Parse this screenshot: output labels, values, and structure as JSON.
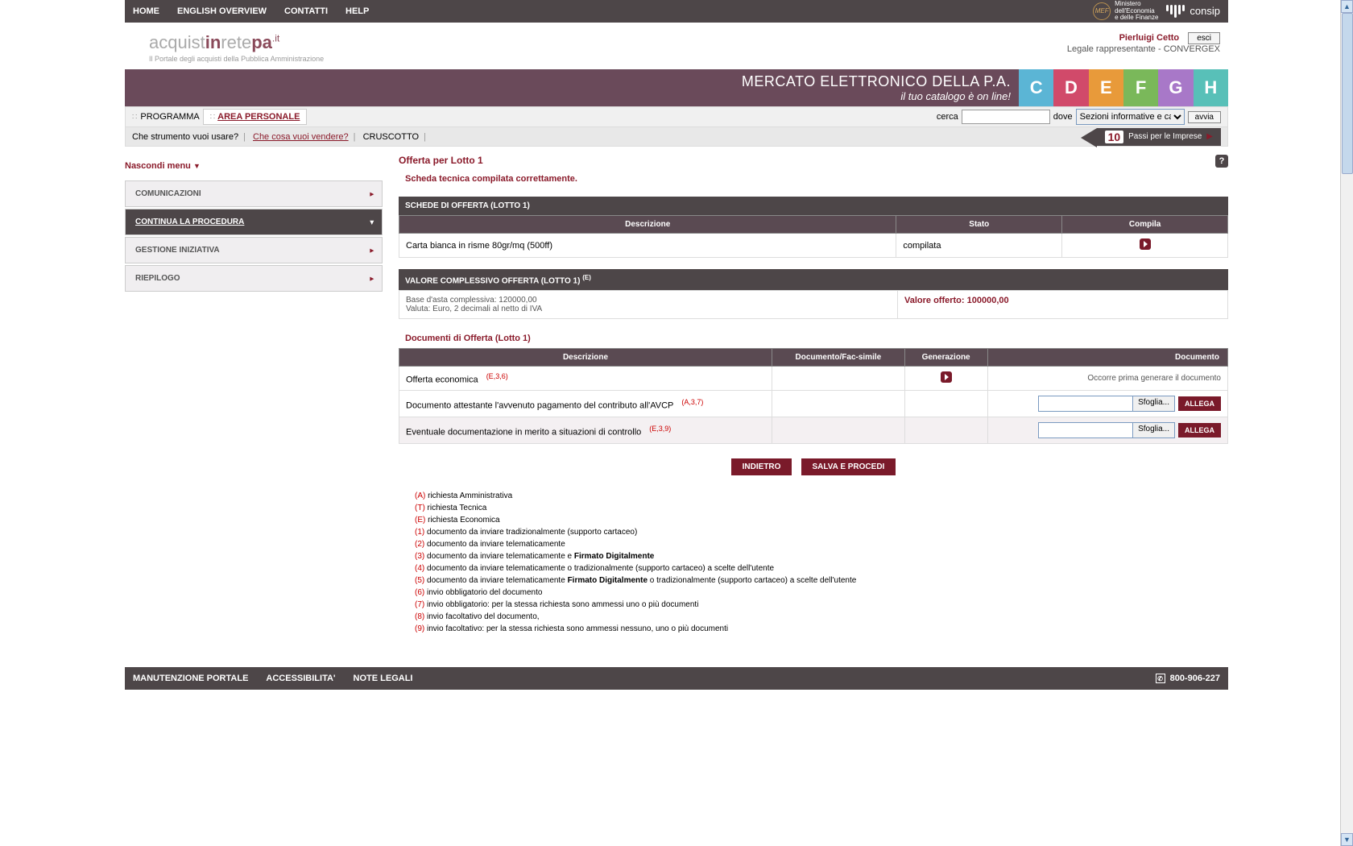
{
  "topnav": {
    "items": [
      "HOME",
      "ENGLISH OVERVIEW",
      "CONTATTI",
      "HELP"
    ],
    "mef_lines": [
      "Ministero",
      "dell'Economia",
      "e delle Finanze"
    ],
    "mef_abbr": "MEF",
    "consip": "consip"
  },
  "logo": {
    "pre": "acquist",
    "mid": "in",
    "post": "rete",
    "tail": "pa",
    "ext": ".it",
    "sub": "Il Portale degli acquisti della Pubblica Amministrazione"
  },
  "user": {
    "name": "Pierluigi Cetto",
    "role": "Legale rappresentante - CONVERGEX",
    "esci": "esci"
  },
  "banner": {
    "line1": "MERCATO ELETTRONICO DELLA P.A.",
    "line2": "il tuo catalogo è on line!",
    "tabs": [
      "C",
      "D",
      "E",
      "F",
      "G",
      "H"
    ],
    "colors": [
      "#5bb5d5",
      "#d14a6a",
      "#e89a3a",
      "#7ab85a",
      "#a878c8",
      "#58c0b8"
    ]
  },
  "crumb": {
    "programma": "PROGRAMMA",
    "area": "AREA PERSONALE",
    "cerca": "cerca",
    "dove": "dove",
    "select_opt": "Sezioni informative e catalogo",
    "avvia": "avvia"
  },
  "subbar": {
    "q1": "Che strumento vuoi usare?",
    "q2": "Che cosa vuoi vendere?",
    "q3": "CRUSCOTTO",
    "passi_num": "10",
    "passi_txt": "Passi per le Imprese"
  },
  "sidebar": {
    "hide": "Nascondi menu",
    "items": [
      {
        "label": "COMUNICAZIONI",
        "active": false
      },
      {
        "label": "CONTINUA LA PROCEDURA",
        "active": true
      },
      {
        "label": "GESTIONE INIZIATIVA",
        "active": false
      },
      {
        "label": "RIEPILOGO",
        "active": false
      }
    ]
  },
  "content": {
    "title": "Offerta per Lotto 1",
    "confirm": "Scheda tecnica compilata correttamente.",
    "schede_head": "SCHEDE DI OFFERTA (LOTTO 1)",
    "cols1": [
      "Descrizione",
      "Stato",
      "Compila"
    ],
    "row1": {
      "desc": "Carta bianca in risme 80gr/mq (500ff)",
      "stato": "compilata"
    },
    "valore_head": "VALORE COMPLESSIVO OFFERTA (LOTTO 1)",
    "valore_sup": "(E)",
    "base_l1": "Base d'asta complessiva: 120000,00",
    "base_l2": "Valuta: Euro, 2 decimali al netto di IVA",
    "offerto": "Valore offerto: 100000,00",
    "doc_title": "Documenti di Offerta (Lotto 1)",
    "cols2": [
      "Descrizione",
      "Documento/Fac-simile",
      "Generazione",
      "Documento"
    ],
    "docrows": [
      {
        "desc": "Offerta economica",
        "note": "(E,3,6)",
        "gen": true,
        "docmsg": "Occorre prima generare il documento",
        "upload": false,
        "alt": false
      },
      {
        "desc": "Documento attestante l'avvenuto pagamento del contributo all'AVCP",
        "note": "(A,3,7)",
        "gen": false,
        "upload": true,
        "alt": false
      },
      {
        "desc": "Eventuale documentazione in merito a situazioni di controllo",
        "note": "(E,3,9)",
        "gen": false,
        "upload": true,
        "alt": true
      }
    ],
    "sfoglia": "Sfoglia...",
    "allega": "ALLEGA",
    "indietro": "INDIETRO",
    "salva": "SALVA E PROCEDI"
  },
  "legend": [
    {
      "c": "(A)",
      "t": " richiesta Amministrativa"
    },
    {
      "c": "(T)",
      "t": " richiesta Tecnica"
    },
    {
      "c": "(E)",
      "t": " richiesta Economica"
    },
    {
      "c": "(1)",
      "t": " documento da inviare tradizionalmente (supporto cartaceo)"
    },
    {
      "c": "(2)",
      "t": " documento da inviare telematicamente"
    },
    {
      "c": "(3)",
      "t": " documento da inviare telematicamente e ",
      "b": "Firmato Digitalmente"
    },
    {
      "c": "(4)",
      "t": " documento da inviare telematicamente o tradizionalmente (supporto cartaceo) a scelte dell'utente"
    },
    {
      "c": "(5)",
      "t": " documento da inviare telematicamente ",
      "b": "Firmato Digitalmente",
      "t2": " o tradizionalmente (supporto cartaceo) a scelte dell'utente"
    },
    {
      "c": "(6)",
      "t": " invio obbligatorio del documento"
    },
    {
      "c": "(7)",
      "t": " invio obbligatorio: per la stessa richiesta sono ammessi uno o più documenti"
    },
    {
      "c": "(8)",
      "t": " invio facoltativo del documento,"
    },
    {
      "c": "(9)",
      "t": " invio facoltativo: per la stessa richiesta sono ammessi nessuno, uno o più documenti"
    }
  ],
  "footer": {
    "items": [
      "MANUTENZIONE PORTALE",
      "ACCESSIBILITA'",
      "NOTE LEGALI"
    ],
    "phone": "800-906-227"
  }
}
